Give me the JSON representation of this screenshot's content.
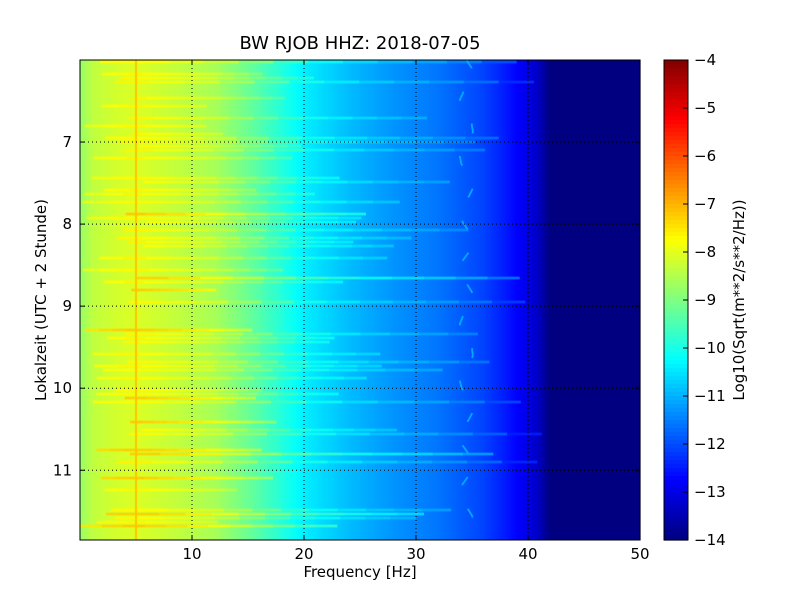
{
  "chart_data": {
    "type": "heatmap",
    "title": "BW RJOB HHZ: 2018-07-05",
    "xlabel": "Frequency [Hz]",
    "ylabel": "Lokalzeit (UTC + 2 Stunde)",
    "colorbar_label": "Log10(Sqrt(m**2/s**2/Hz))",
    "xlim": [
      0,
      50
    ],
    "ylim": [
      6.0,
      11.85
    ],
    "y_inverted": true,
    "grid": true,
    "x_ticks": [
      10,
      20,
      30,
      40,
      50
    ],
    "x_tick_labels": [
      "10",
      "20",
      "30",
      "40",
      "50"
    ],
    "y_ticks": [
      7,
      8,
      9,
      10,
      11
    ],
    "y_tick_labels": [
      "7",
      "8",
      "9",
      "10",
      "11"
    ],
    "colorbar_range": [
      -14,
      -4
    ],
    "colorbar_ticks": [
      -4,
      -5,
      -6,
      -7,
      -8,
      -9,
      -10,
      -11,
      -12,
      -13,
      -14
    ],
    "colorbar_tick_labels": [
      "−4",
      "−5",
      "−6",
      "−7",
      "−8",
      "−9",
      "−10",
      "−11",
      "−12",
      "−13",
      "−14"
    ],
    "colormap": "jet",
    "spectrum_profile": {
      "frequency_hz": [
        0,
        1,
        3,
        5,
        8,
        12,
        15,
        18,
        20,
        24,
        28,
        32,
        36,
        38,
        40,
        41,
        42,
        50
      ],
      "log10_amplitude": [
        -8.8,
        -8.4,
        -8.2,
        -8.1,
        -8.3,
        -8.6,
        -9.2,
        -9.9,
        -10.4,
        -10.9,
        -11.3,
        -11.6,
        -12.1,
        -12.5,
        -13.0,
        -13.4,
        -14.0,
        -14.0
      ]
    },
    "notable_features": [
      {
        "label": "persistent line",
        "frequency_hz": 5.0,
        "log10_amplitude": -7.2
      },
      {
        "label": "wandering line",
        "frequency_hz": 34.5,
        "log10_amplitude": -11.0
      }
    ]
  }
}
